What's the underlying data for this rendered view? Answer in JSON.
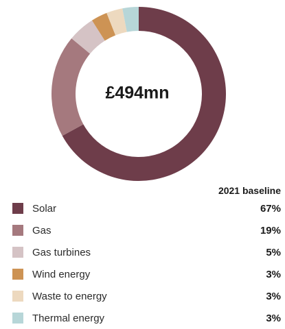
{
  "chart_data": {
    "type": "pie",
    "center_label": "£494mn",
    "column_header": "2021 baseline",
    "slices": [
      {
        "label": "Solar",
        "value": 67,
        "display": "67%",
        "color": "#6e3d4a"
      },
      {
        "label": "Gas",
        "value": 19,
        "display": "19%",
        "color": "#a5797e"
      },
      {
        "label": "Gas turbines",
        "value": 5,
        "display": "5%",
        "color": "#d5c3c5"
      },
      {
        "label": "Wind energy",
        "value": 3,
        "display": "3%",
        "color": "#cd9354"
      },
      {
        "label": "Waste to energy",
        "value": 3,
        "display": "3%",
        "color": "#edd9bf"
      },
      {
        "label": "Thermal energy",
        "value": 3,
        "display": "3%",
        "color": "#b7d6d8"
      }
    ]
  }
}
